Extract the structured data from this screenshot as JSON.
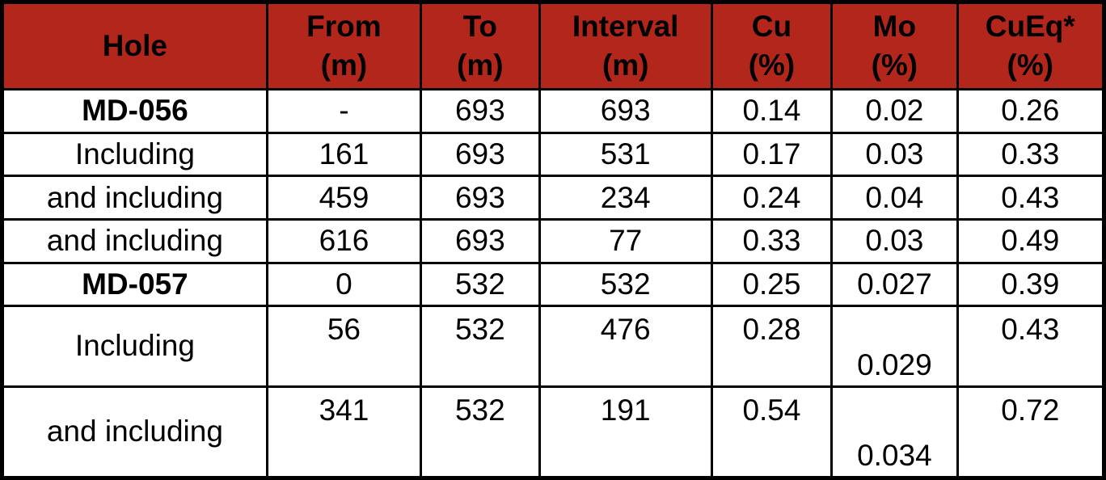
{
  "header": {
    "cols": [
      {
        "line1": "Hole",
        "line2": ""
      },
      {
        "line1": "From",
        "line2": "(m)"
      },
      {
        "line1": "To",
        "line2": "(m)"
      },
      {
        "line1": "Interval",
        "line2": "(m)"
      },
      {
        "line1": "Cu",
        "line2": "(%)"
      },
      {
        "line1": "Mo",
        "line2": "(%)"
      },
      {
        "line1": "CuEq*",
        "line2": "(%)"
      }
    ]
  },
  "rows": [
    {
      "hole": "MD-056",
      "from": "-",
      "to": "693",
      "interval": "693",
      "cu": "0.14",
      "mo": "0.02",
      "cueq": "0.26"
    },
    {
      "hole": "Including",
      "from": "161",
      "to": "693",
      "interval": "531",
      "cu": "0.17",
      "mo": "0.03",
      "cueq": "0.33"
    },
    {
      "hole": "and including",
      "from": "459",
      "to": "693",
      "interval": "234",
      "cu": "0.24",
      "mo": "0.04",
      "cueq": "0.43"
    },
    {
      "hole": "and including",
      "from": "616",
      "to": "693",
      "interval": "77",
      "cu": "0.33",
      "mo": "0.03",
      "cueq": "0.49"
    },
    {
      "hole": "MD-057",
      "from": "0",
      "to": "532",
      "interval": "532",
      "cu": "0.25",
      "mo": "0.027",
      "cueq": "0.39"
    },
    {
      "hole": "Including",
      "from": "56",
      "to": "532",
      "interval": "476",
      "cu": "0.28",
      "mo": "0.029",
      "cueq": "0.43"
    },
    {
      "hole": "and including",
      "from": "341",
      "to": "532",
      "interval": "191",
      "cu": "0.54",
      "mo": "0.034",
      "cueq": "0.72"
    }
  ],
  "colors": {
    "header_bg": "#B2261B",
    "header_text": "#FFFFFF",
    "body_bg": "#FFFFFF",
    "body_text": "#000000",
    "border": "#000000"
  },
  "chart_data": {
    "type": "table",
    "columns": [
      "Hole",
      "From (m)",
      "To (m)",
      "Interval (m)",
      "Cu (%)",
      "Mo (%)",
      "CuEq* (%)"
    ],
    "rows": [
      [
        "MD-056",
        "-",
        "693",
        "693",
        "0.14",
        "0.02",
        "0.26"
      ],
      [
        "Including",
        "161",
        "693",
        "531",
        "0.17",
        "0.03",
        "0.33"
      ],
      [
        "and including",
        "459",
        "693",
        "234",
        "0.24",
        "0.04",
        "0.43"
      ],
      [
        "and including",
        "616",
        "693",
        "77",
        "0.33",
        "0.03",
        "0.49"
      ],
      [
        "MD-057",
        "0",
        "532",
        "532",
        "0.25",
        "0.027",
        "0.39"
      ],
      [
        "Including",
        "56",
        "532",
        "476",
        "0.28",
        "0.029",
        "0.43"
      ],
      [
        "and including",
        "341",
        "532",
        "191",
        "0.54",
        "0.034",
        "0.72"
      ]
    ]
  }
}
